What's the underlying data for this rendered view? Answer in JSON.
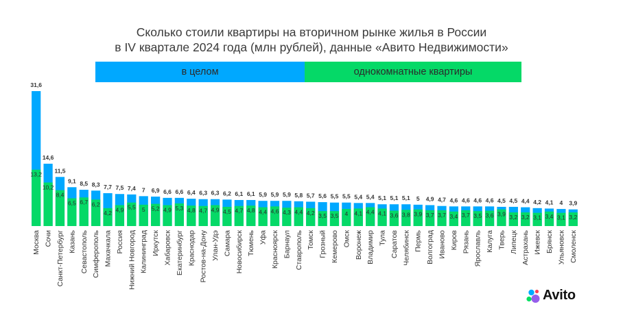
{
  "header": {
    "title_line1": "Сколько стоили квартиры на вторичном рынке жилья в России",
    "title_line2": "в IV квартале 2024 года (млн рублей), данные «Авито Недвижимости»"
  },
  "legend": {
    "all_label": "в целом",
    "one_room_label": "однокомнатные квартиры"
  },
  "colors": {
    "all": "#00a8ff",
    "one_room": "#05d967"
  },
  "logo": {
    "text": "Avito"
  },
  "chart_data": {
    "type": "bar",
    "title": "Сколько стоили квартиры на вторичном рынке жилья в России в IV квартале 2024 года (млн рублей), данные «Авито Недвижимости»",
    "xlabel": "",
    "ylabel": "",
    "ylim": [
      0,
      31.6
    ],
    "categories": [
      "Москва",
      "Сочи",
      "Санкт-Петербург",
      "Казань",
      "Севастополь",
      "Симферополь",
      "Махачкала",
      "Россия",
      "Нижний Новгород",
      "Калининград",
      "Иркутск",
      "Хабаровск",
      "Екатеринбург",
      "Краснодар",
      "Ростов-на-Дону",
      "Улан-Удэ",
      "Самара",
      "Новосибирск",
      "Тюмень",
      "Уфа",
      "Красноярск",
      "Барнаул",
      "Ставрополь",
      "Томск",
      "Грозный",
      "Кемерово",
      "Омск",
      "Воронеж",
      "Владимир",
      "Тула",
      "Саратов",
      "Челябинск",
      "Пермь",
      "Волгоград",
      "Иваново",
      "Киров",
      "Рязань",
      "Ярославль",
      "Калуга",
      "Тверь",
      "Липецк",
      "Астрахань",
      "Ижевск",
      "Брянск",
      "Ульяновск",
      "Смоленск"
    ],
    "series": [
      {
        "name": "в целом",
        "labels": [
          "31,6",
          "14,6",
          "11,5",
          "9,1",
          "8,5",
          "8,3",
          "7,7",
          "7,5",
          "7,4",
          "7",
          "6,9",
          "6,6",
          "6,6",
          "6,4",
          "6,3",
          "6,3",
          "6,2",
          "6,1",
          "6,1",
          "5,9",
          "5,9",
          "5,9",
          "5,8",
          "5,7",
          "5,6",
          "5,5",
          "5,5",
          "5,4",
          "5,4",
          "5,1",
          "5,1",
          "5,1",
          "5",
          "4,9",
          "4,7",
          "4,6",
          "4,6",
          "4,6",
          "4,6",
          "4,5",
          "4,5",
          "4,4",
          "4,2",
          "4,1",
          "4",
          "3,9"
        ],
        "values": [
          31.6,
          14.6,
          11.5,
          9.1,
          8.5,
          8.3,
          7.7,
          7.5,
          7.4,
          7,
          6.9,
          6.6,
          6.6,
          6.4,
          6.3,
          6.3,
          6.2,
          6.1,
          6.1,
          5.9,
          5.9,
          5.9,
          5.8,
          5.7,
          5.6,
          5.5,
          5.5,
          5.4,
          5.4,
          5.1,
          5.1,
          5.1,
          5,
          4.9,
          4.7,
          4.6,
          4.6,
          4.6,
          4.6,
          4.5,
          4.5,
          4.4,
          4.2,
          4.1,
          4,
          3.9
        ]
      },
      {
        "name": "однокомнатные квартиры",
        "labels": [
          "13,2",
          "10,2",
          "8,4",
          "6,5",
          "6,7",
          "6,2",
          "4,2",
          "4,9",
          "5,5",
          "5",
          "5,2",
          "4,9",
          "5,3",
          "4,8",
          "4,7",
          "4,9",
          "4,5",
          "4,7",
          "4,8",
          "4,4",
          "4,6",
          "4,3",
          "4,4",
          "4,2",
          "3,5",
          "3,5",
          "4",
          "4,1",
          "4,4",
          "4,1",
          "3,6",
          "3,8",
          "3,9",
          "3,7",
          "3,7",
          "3,4",
          "3,7",
          "3,5",
          "3,6",
          "3,9",
          "3,2",
          "3,2",
          "3,1",
          "3,4",
          "3,1",
          "3,2"
        ],
        "values": [
          13.2,
          10.2,
          8.4,
          6.5,
          6.7,
          6.2,
          4.2,
          4.9,
          5.5,
          5,
          5.2,
          4.9,
          5.3,
          4.8,
          4.7,
          4.9,
          4.5,
          4.7,
          4.8,
          4.4,
          4.6,
          4.3,
          4.4,
          4.2,
          3.5,
          3.5,
          4,
          4.1,
          4.4,
          4.1,
          3.6,
          3.8,
          3.9,
          3.7,
          3.7,
          3.4,
          3.7,
          3.5,
          3.6,
          3.9,
          3.2,
          3.2,
          3.1,
          3.4,
          3.1,
          3.2
        ]
      }
    ]
  }
}
